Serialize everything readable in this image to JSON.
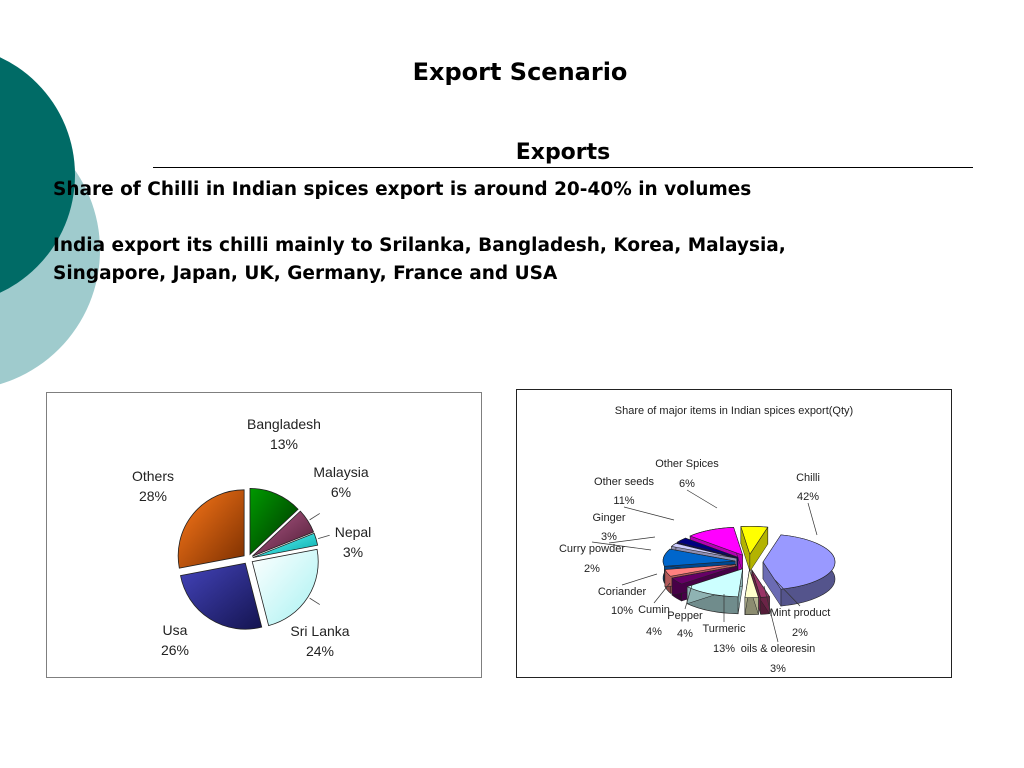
{
  "slide": {
    "title": "Export Scenario",
    "subtitle": "Exports",
    "bullet_1": "Share of Chilli in Indian spices export is around 20-40% in volumes",
    "bullet_2_line_1": "India export its chilli mainly to Srilanka, Bangladesh, Korea, Malaysia,",
    "bullet_2_line_2": "Singapore, Japan, UK, Germany, France and USA"
  },
  "chart_data": [
    {
      "type": "pie",
      "title": "",
      "categories": [
        "Bangladesh",
        "Malaysia",
        "Nepal",
        "Sri Lanka",
        "Usa",
        "Others"
      ],
      "values": [
        13,
        6,
        3,
        24,
        26,
        28
      ],
      "value_labels": [
        "13%",
        "6%",
        "3%",
        "24%",
        "26%",
        "28%"
      ],
      "colors": [
        "#008000",
        "#993366",
        "#33cccc",
        "#ccffff",
        "#333399",
        "#ff6600"
      ],
      "exploded": true,
      "legend": "none"
    },
    {
      "type": "pie",
      "title": "Share of major items in Indian spices export(Qty)",
      "categories": [
        "Chilli",
        "Mint product",
        "oils & oleoresin",
        "Turmeric",
        "Pepper",
        "Cumin",
        "Coriander",
        "Curry powder",
        "Ginger",
        "Other seeds",
        "Other Spices"
      ],
      "values": [
        42,
        2,
        3,
        13,
        4,
        4,
        10,
        2,
        3,
        11,
        6
      ],
      "value_labels": [
        "42%",
        "2%",
        "3%",
        "13%",
        "4%",
        "4%",
        "10%",
        "2%",
        "3%",
        "11%",
        "6%"
      ],
      "colors": [
        "#9999ff",
        "#993366",
        "#ffffcc",
        "#ccffff",
        "#660066",
        "#ff8080",
        "#0066cc",
        "#ccccff",
        "#000080",
        "#ff00ff",
        "#ffff00"
      ],
      "three_d": true,
      "exploded": true,
      "legend": "none"
    }
  ]
}
